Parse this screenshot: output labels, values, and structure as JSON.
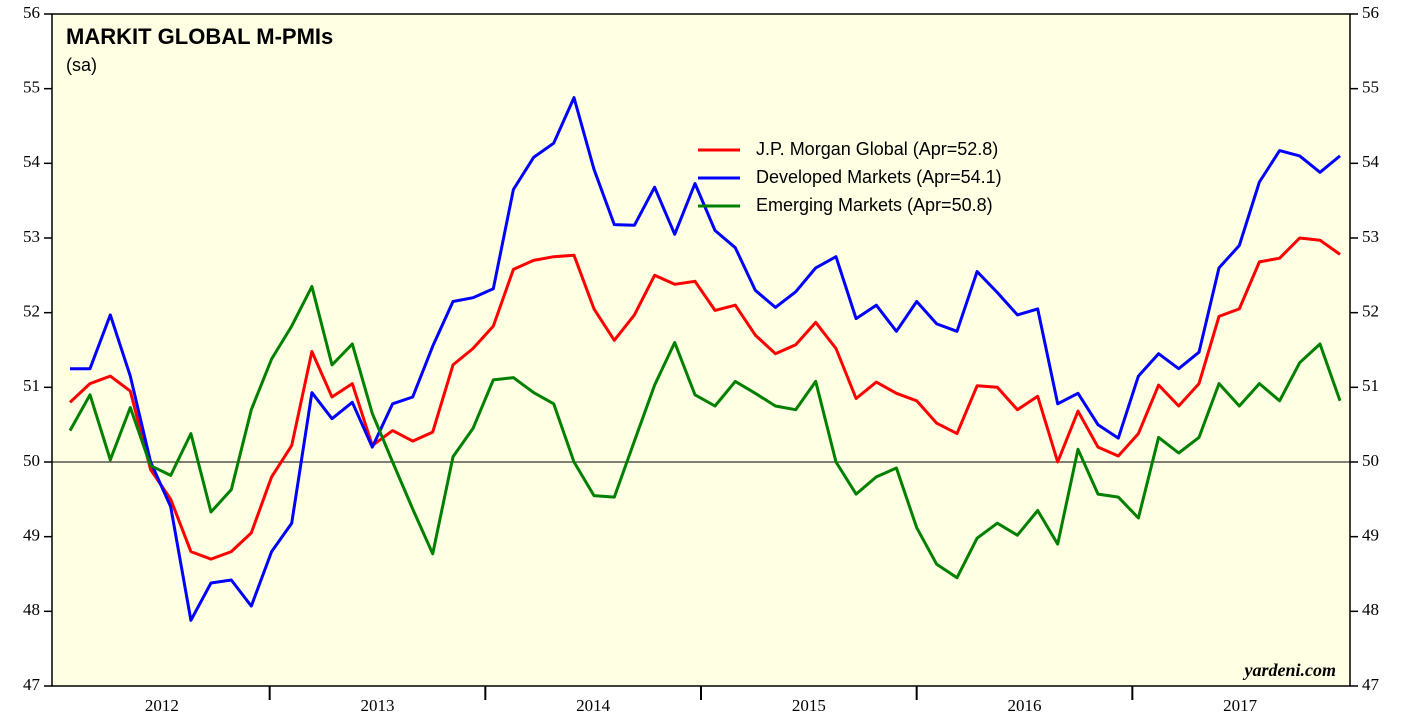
{
  "chart_data": {
    "type": "line",
    "title": "MARKIT GLOBAL M-PMIs",
    "subtitle": "(sa)",
    "watermark": "yardeni.com",
    "x": [
      2012.074,
      2012.167,
      2012.261,
      2012.354,
      2012.448,
      2012.541,
      2012.635,
      2012.728,
      2012.822,
      2012.915,
      2013.009,
      2013.102,
      2013.196,
      2013.289,
      2013.383,
      2013.476,
      2013.57,
      2013.663,
      2013.756,
      2013.85,
      2013.943,
      2014.037,
      2014.13,
      2014.224,
      2014.317,
      2014.411,
      2014.504,
      2014.598,
      2014.691,
      2014.785,
      2014.878,
      2014.972,
      2015.065,
      2015.159,
      2015.252,
      2015.345,
      2015.439,
      2015.532,
      2015.626,
      2015.719,
      2015.813,
      2015.906,
      2016.0,
      2016.093,
      2016.187,
      2016.28,
      2016.374,
      2016.467,
      2016.561,
      2016.654,
      2016.748,
      2016.841,
      2016.935,
      2017.028,
      2017.122,
      2017.215,
      2017.309,
      2017.402,
      2017.496,
      2017.589,
      2017.683,
      2017.776,
      2017.87,
      2017.963
    ],
    "series": [
      {
        "name": "J.P. Morgan Global (Apr=52.8)",
        "color": "#ff0000",
        "values": [
          50.8,
          51.05,
          51.15,
          50.95,
          49.9,
          49.5,
          48.8,
          48.7,
          48.8,
          49.05,
          49.8,
          50.22,
          51.48,
          50.87,
          51.05,
          50.22,
          50.42,
          50.28,
          50.4,
          51.3,
          51.52,
          51.82,
          52.58,
          52.7,
          52.75,
          52.77,
          52.05,
          51.63,
          51.97,
          52.5,
          52.38,
          52.42,
          52.03,
          52.1,
          51.7,
          51.45,
          51.57,
          51.87,
          51.52,
          50.85,
          51.07,
          50.92,
          50.82,
          50.52,
          50.38,
          51.02,
          51.0,
          50.7,
          50.88,
          50.0,
          50.68,
          50.2,
          50.08,
          50.38,
          51.03,
          50.75,
          51.05,
          51.95,
          52.05,
          52.68,
          52.73,
          53.0,
          52.97,
          52.78
        ]
      },
      {
        "name": "Developed Markets (Apr=54.1)",
        "color": "#0000ff",
        "values": [
          51.25,
          51.25,
          51.97,
          51.15,
          50.0,
          49.4,
          47.88,
          48.38,
          48.42,
          48.07,
          48.8,
          49.18,
          50.93,
          50.58,
          50.8,
          50.2,
          50.78,
          50.87,
          51.55,
          52.15,
          52.2,
          52.32,
          53.65,
          54.08,
          54.27,
          54.88,
          53.92,
          53.18,
          53.17,
          53.68,
          53.05,
          53.73,
          53.1,
          52.87,
          52.3,
          52.07,
          52.28,
          52.6,
          52.75,
          51.92,
          52.1,
          51.75,
          52.15,
          51.85,
          51.75,
          52.55,
          52.27,
          51.97,
          52.05,
          50.78,
          50.92,
          50.5,
          50.32,
          51.15,
          51.45,
          51.25,
          51.47,
          52.6,
          52.9,
          53.75,
          54.17,
          54.1,
          53.88,
          54.1
        ]
      },
      {
        "name": "Emerging Markets (Apr=50.8)",
        "color": "#008000",
        "values": [
          50.42,
          50.9,
          50.03,
          50.73,
          49.95,
          49.82,
          50.38,
          49.33,
          49.63,
          50.7,
          51.38,
          51.82,
          52.35,
          51.3,
          51.58,
          50.65,
          50.0,
          49.37,
          48.77,
          50.07,
          50.45,
          51.1,
          51.13,
          50.93,
          50.78,
          50.0,
          49.55,
          49.53,
          50.28,
          51.03,
          51.6,
          50.9,
          50.75,
          51.08,
          50.92,
          50.75,
          50.7,
          51.08,
          50.0,
          49.57,
          49.8,
          49.92,
          49.12,
          48.63,
          48.45,
          48.98,
          49.18,
          49.02,
          49.35,
          48.9,
          50.17,
          49.57,
          49.53,
          49.25,
          50.33,
          50.12,
          50.33,
          51.05,
          50.75,
          51.05,
          50.82,
          51.33,
          51.58,
          50.82
        ]
      }
    ],
    "xlim": [
      2012,
      2018
    ],
    "xticks": [
      2013,
      2014,
      2015,
      2016,
      2017
    ],
    "year_labels": [
      {
        "value": 2012.5,
        "label": "2012"
      },
      {
        "value": 2013.5,
        "label": "2013"
      },
      {
        "value": 2014.5,
        "label": "2014"
      },
      {
        "value": 2015.5,
        "label": "2015"
      },
      {
        "value": 2016.5,
        "label": "2016"
      },
      {
        "value": 2017.5,
        "label": "2017"
      }
    ],
    "ylim": [
      47,
      56
    ],
    "yticks": [
      47,
      48,
      49,
      50,
      51,
      52,
      53,
      54,
      55,
      56
    ],
    "hline": 50,
    "legend": "upper right",
    "background": "#ffffe3"
  }
}
